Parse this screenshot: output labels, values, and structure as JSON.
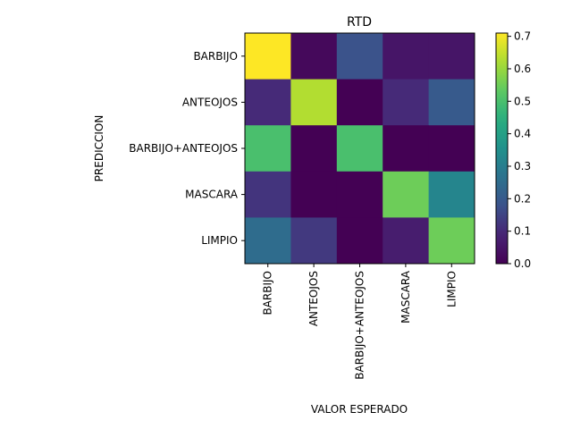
{
  "chart_data": {
    "type": "heatmap",
    "title": "RTD",
    "xlabel": "VALOR ESPERADO",
    "ylabel": "PREDICCION",
    "x_categories": [
      "BARBIJO",
      "ANTEOJOS",
      "BARBIJO+ANTEOJOS",
      "MASCARA",
      "LIMPIO"
    ],
    "y_categories": [
      "BARBIJO",
      "ANTEOJOS",
      "BARBIJO+ANTEOJOS",
      "MASCARA",
      "LIMPIO"
    ],
    "values": [
      [
        0.71,
        0.02,
        0.18,
        0.05,
        0.05
      ],
      [
        0.1,
        0.63,
        0.0,
        0.1,
        0.2
      ],
      [
        0.5,
        0.0,
        0.5,
        0.0,
        0.0
      ],
      [
        0.12,
        0.0,
        0.0,
        0.55,
        0.32
      ],
      [
        0.25,
        0.13,
        0.0,
        0.07,
        0.55
      ]
    ],
    "colormap": "viridis",
    "colorbar": {
      "range": [
        0.0,
        0.71
      ],
      "ticks": [
        "0.0",
        "0.1",
        "0.2",
        "0.3",
        "0.4",
        "0.5",
        "0.6",
        "0.7"
      ]
    }
  }
}
